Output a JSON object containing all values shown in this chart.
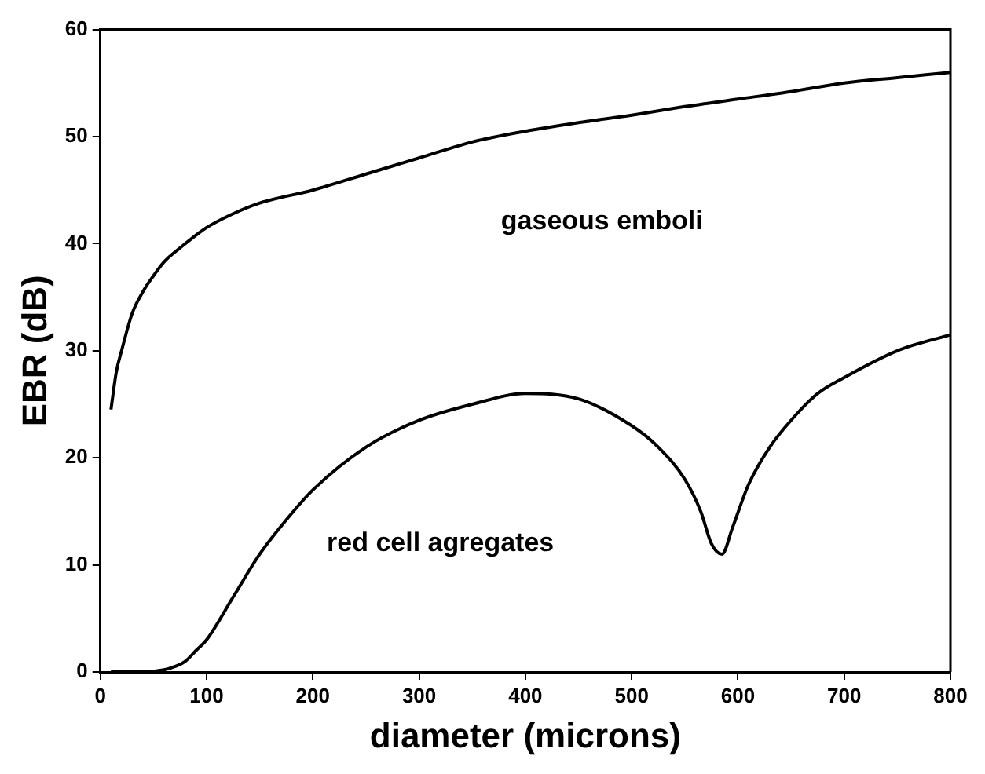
{
  "chart_data": {
    "type": "line",
    "xlabel": "diameter (microns)",
    "ylabel": "EBR (dB)",
    "xlim": [
      0,
      800
    ],
    "xticks": [
      0,
      100,
      200,
      300,
      400,
      500,
      600,
      700,
      800
    ],
    "ylim": [
      0,
      60
    ],
    "yticks": [
      0,
      10,
      20,
      30,
      40,
      50,
      60
    ],
    "grid": false,
    "legend": false,
    "marker": "none",
    "line_style": "solid",
    "series": [
      {
        "color": "#000000",
        "x": [
          10,
          15,
          20,
          30,
          40,
          50,
          60,
          75,
          100,
          125,
          150,
          200,
          250,
          300,
          350,
          400,
          450,
          500,
          550,
          600,
          650,
          700,
          750,
          800
        ],
        "values": [
          24.5,
          28,
          30,
          33.5,
          35.5,
          37,
          38.3,
          39.6,
          41.5,
          42.8,
          43.8,
          45,
          46.5,
          48,
          49.5,
          50.5,
          51.3,
          52,
          52.8,
          53.5,
          54.2,
          55,
          55.5,
          56
        ]
      },
      {
        "color": "#000000",
        "x": [
          10,
          40,
          60,
          70,
          80,
          90,
          100,
          125,
          150,
          175,
          200,
          250,
          300,
          350,
          400,
          450,
          500,
          525,
          550,
          565,
          575,
          585,
          595,
          610,
          630,
          650,
          675,
          700,
          750,
          800
        ],
        "values": [
          0,
          0,
          0.2,
          0.5,
          1,
          2,
          3,
          7,
          11,
          14.2,
          17,
          21,
          23.5,
          25,
          26,
          25.5,
          23,
          21,
          18,
          15,
          12,
          11,
          13.5,
          17.5,
          21,
          23.5,
          26,
          27.5,
          30,
          31.5
        ]
      }
    ],
    "annotations": [
      "gaseous emboli",
      "red cell agregates"
    ]
  }
}
